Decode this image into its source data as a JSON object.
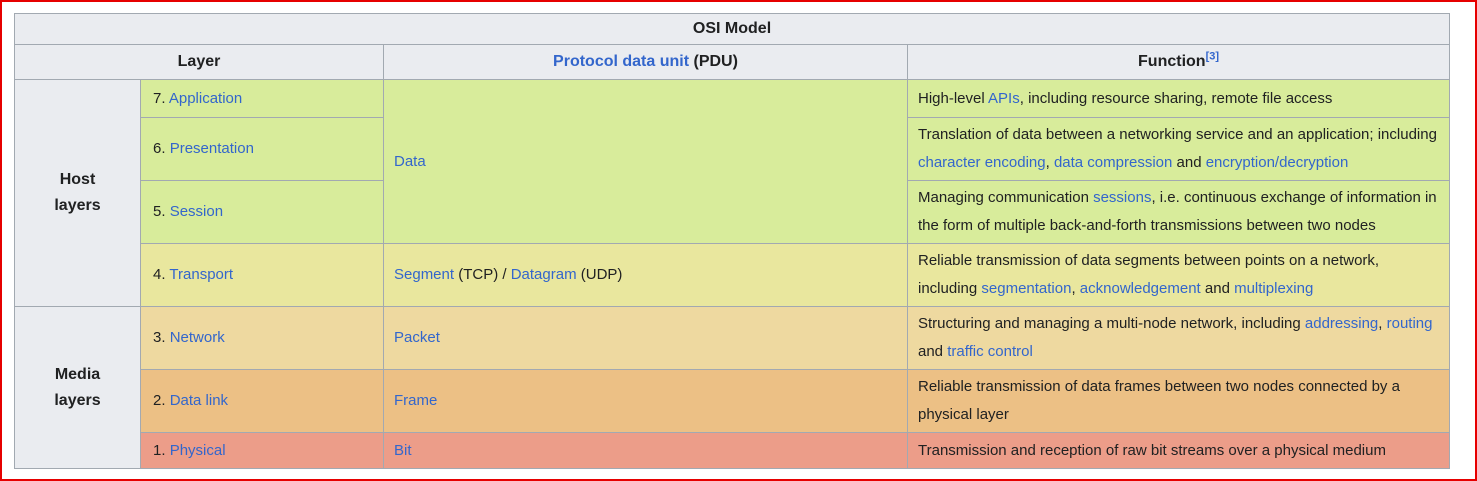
{
  "colors": {
    "frame": "#e60000",
    "header_bg": "#eaecf0",
    "border": "#a2a9b1",
    "text": "#202122",
    "link": "#3366cc",
    "green": "#d8ec9b",
    "yellow": "#e9e79e",
    "tan": "#eed9a0",
    "orange": "#ecc085",
    "salmon": "#ec9d89"
  },
  "table": {
    "title": "OSI Model",
    "header": {
      "layer": "Layer",
      "pdu_link": "Protocol data unit",
      "pdu_suffix": " (PDU)",
      "function": "Function",
      "function_ref": "[3]"
    },
    "groups": [
      {
        "line1": "Host",
        "line2": "layers"
      },
      {
        "line1": "Media",
        "line2": "layers"
      }
    ],
    "rows": [
      {
        "num": "7.",
        "layer": "Application",
        "pdu_segments": [
          {
            "text": "Data",
            "link": true
          }
        ],
        "function_segments": [
          {
            "text": "High-level ",
            "link": false
          },
          {
            "text": "APIs",
            "link": true
          },
          {
            "text": ", including resource sharing, remote file access",
            "link": false
          }
        ]
      },
      {
        "num": "6.",
        "layer": "Presentation",
        "function_segments": [
          {
            "text": "Translation of data between a networking service and an application; including ",
            "link": false
          },
          {
            "text": "character encoding",
            "link": true
          },
          {
            "text": ", ",
            "link": false
          },
          {
            "text": "data compression",
            "link": true
          },
          {
            "text": " and ",
            "link": false
          },
          {
            "text": "encryption/decryption",
            "link": true
          }
        ]
      },
      {
        "num": "5.",
        "layer": "Session",
        "function_segments": [
          {
            "text": "Managing communication ",
            "link": false
          },
          {
            "text": "sessions",
            "link": true
          },
          {
            "text": ", i.e. continuous exchange of information in the form of multiple back-and-forth transmissions between two nodes",
            "link": false
          }
        ]
      },
      {
        "num": "4.",
        "layer": "Transport",
        "pdu_segments": [
          {
            "text": "Segment",
            "link": true
          },
          {
            "text": " (TCP) / ",
            "link": false
          },
          {
            "text": "Datagram",
            "link": true
          },
          {
            "text": " (UDP)",
            "link": false
          }
        ],
        "function_segments": [
          {
            "text": "Reliable transmission of data segments between points on a network, including ",
            "link": false
          },
          {
            "text": "segmentation",
            "link": true
          },
          {
            "text": ", ",
            "link": false
          },
          {
            "text": "acknowledgement",
            "link": true
          },
          {
            "text": " and ",
            "link": false
          },
          {
            "text": "multiplexing",
            "link": true
          }
        ]
      },
      {
        "num": "3.",
        "layer": "Network",
        "pdu_segments": [
          {
            "text": "Packet",
            "link": true
          }
        ],
        "function_segments": [
          {
            "text": "Structuring and managing a multi-node network, including ",
            "link": false
          },
          {
            "text": "addressing",
            "link": true
          },
          {
            "text": ", ",
            "link": false
          },
          {
            "text": "routing",
            "link": true
          },
          {
            "text": " and ",
            "link": false
          },
          {
            "text": "traffic control",
            "link": true
          }
        ]
      },
      {
        "num": "2.",
        "layer": "Data link",
        "pdu_segments": [
          {
            "text": "Frame",
            "link": true
          }
        ],
        "function_segments": [
          {
            "text": "Reliable transmission of data frames between two nodes connected by a physical layer",
            "link": false
          }
        ]
      },
      {
        "num": "1.",
        "layer": "Physical",
        "pdu_segments": [
          {
            "text": "Bit",
            "link": true
          }
        ],
        "function_segments": [
          {
            "text": "Transmission and reception of raw bit streams over a physical medium",
            "link": false
          }
        ]
      }
    ]
  }
}
